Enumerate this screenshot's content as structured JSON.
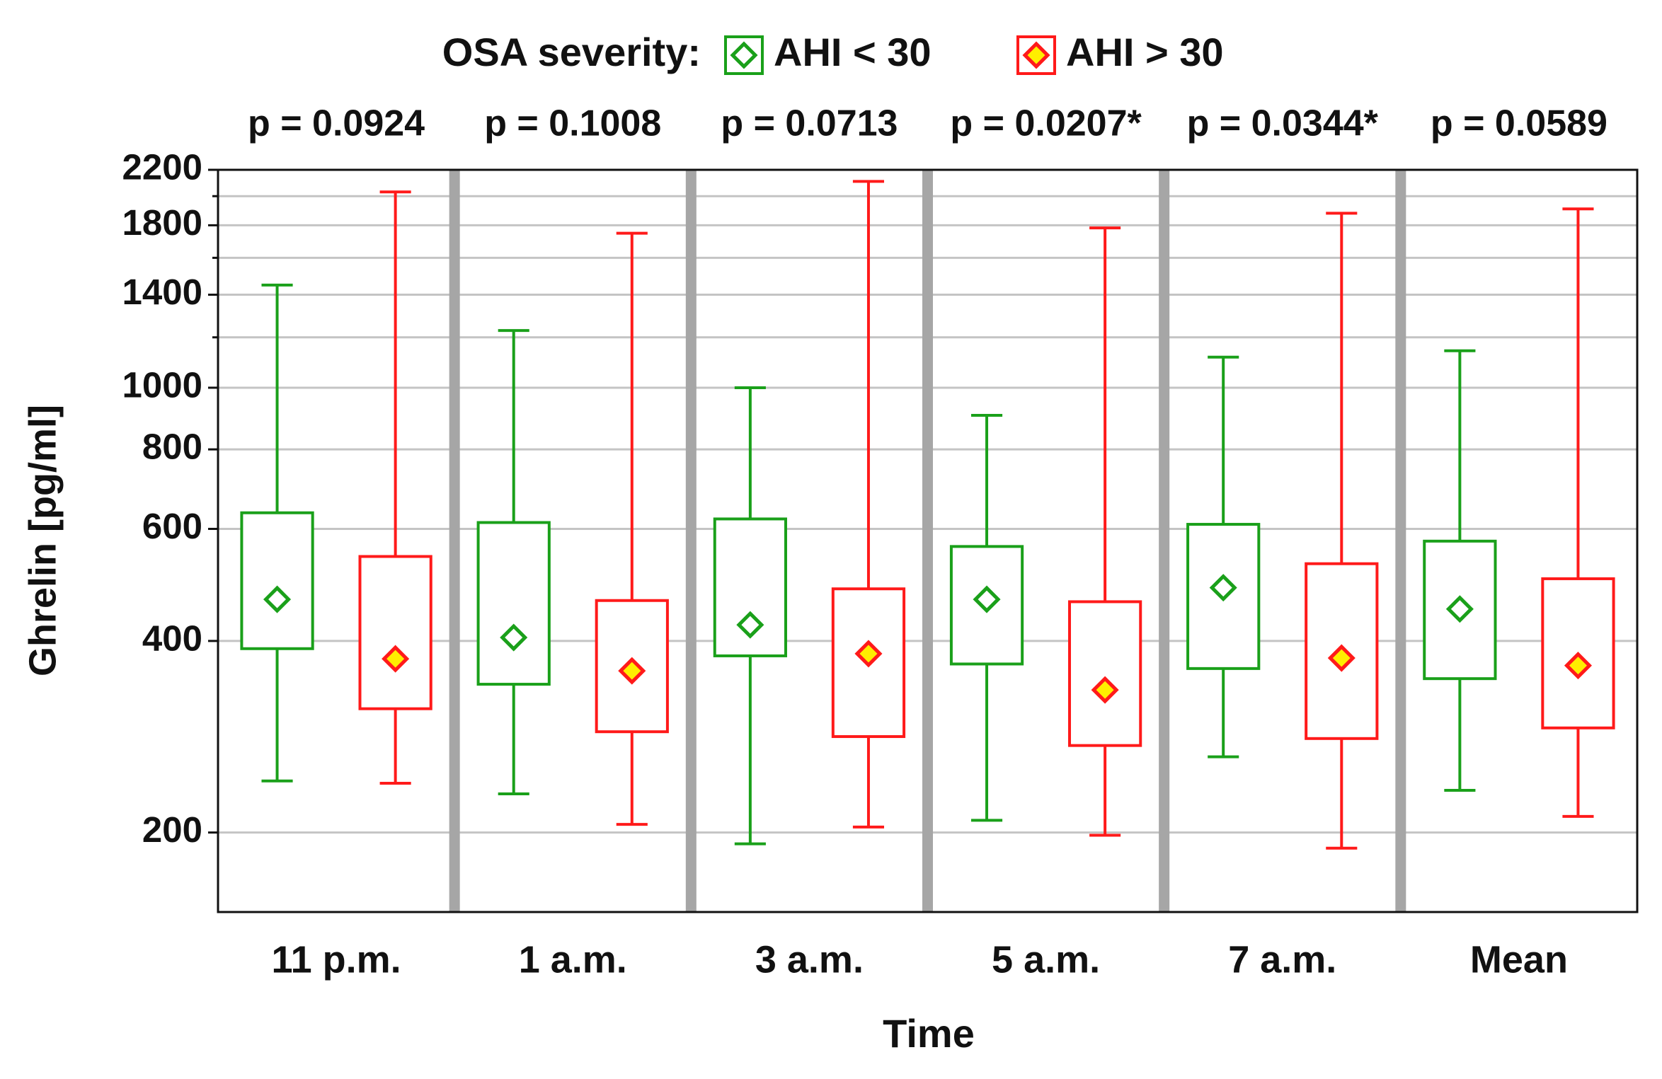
{
  "chart_data": {
    "type": "box",
    "legend_title": "OSA severity:",
    "x_label": "Time",
    "y_label": "Ghrelin [pg/ml]",
    "categories": [
      "11 p.m.",
      "1 a.m.",
      "3 a.m.",
      "5 a.m.",
      "7 a.m.",
      "Mean"
    ],
    "annotations": [
      "p = 0.0924",
      "p = 0.1008",
      "p = 0.0713",
      "p = 0.0207*",
      "p = 0.0344*",
      "p = 0.0589"
    ],
    "log_y": true,
    "grid": true,
    "legend": "top",
    "ylim": [
      150,
      2200
    ],
    "yticks": [
      200,
      400,
      600,
      800,
      1000,
      1400,
      1800,
      2200
    ],
    "minor_yticks": [
      1200,
      1600,
      2000
    ],
    "series": [
      {
        "name": "AHI < 30",
        "color": "#1aa01a",
        "marker_fill": "#ffffff",
        "whisker_high": [
          1450,
          1230,
          1000,
          905,
          1117,
          1143
        ],
        "box_high": [
          636,
          614,
          622,
          563,
          610,
          574
        ],
        "center": [
          465,
          405,
          424,
          465,
          485,
          449
        ],
        "box_low": [
          389,
          342,
          379,
          368,
          362,
          349
        ],
        "whisker_low": [
          241,
          230,
          192,
          209,
          263,
          233
        ]
      },
      {
        "name": "AHI > 30",
        "color": "#ff1a1a",
        "marker_fill": "#ffee00",
        "whisker_high": [
          2031,
          1749,
          2110,
          1783,
          1880,
          1910
        ],
        "box_high": [
          543,
          463,
          483,
          461,
          529,
          501
        ],
        "center": [
          375,
          359,
          382,
          335,
          376,
          366
        ],
        "box_low": [
          313,
          288,
          283,
          274,
          281,
          292
        ],
        "whisker_low": [
          239,
          206,
          204,
          198,
          189,
          212
        ]
      }
    ]
  }
}
